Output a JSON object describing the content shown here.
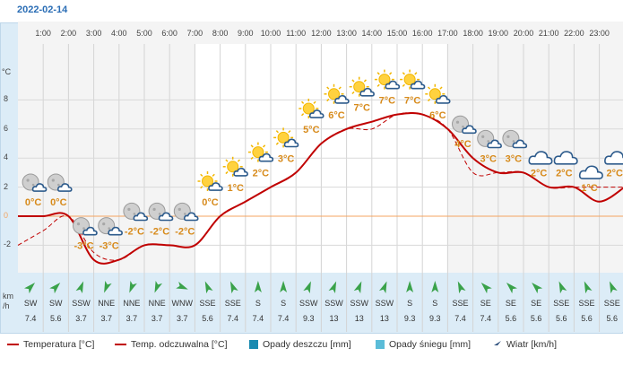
{
  "date": "2022-02-14",
  "units": {
    "temp": "°C",
    "wind_line1": "km",
    "wind_line2": "/h"
  },
  "colors": {
    "temperature": "#c00000",
    "rain": "#1a8ab0",
    "snow": "#5bbcd8",
    "zero_line": "#f4a460",
    "text_temp": "#d78a1a"
  },
  "y_ticks": [
    "8",
    "6",
    "4",
    "2",
    "0",
    "-2"
  ],
  "hours": [
    "1:00",
    "2:00",
    "3:00",
    "4:00",
    "5:00",
    "6:00",
    "7:00",
    "8:00",
    "9:00",
    "10:00",
    "11:00",
    "12:00",
    "13:00",
    "14:00",
    "15:00",
    "16:00",
    "17:00",
    "18:00",
    "19:00",
    "20:00",
    "21:00",
    "22:00",
    "23:00"
  ],
  "chart_data": {
    "type": "line",
    "title": "",
    "ylabel": "°C",
    "ylim": [
      -4,
      10
    ],
    "x": [
      "0:00",
      "1:00",
      "2:00",
      "3:00",
      "4:00",
      "5:00",
      "6:00",
      "7:00",
      "8:00",
      "9:00",
      "10:00",
      "11:00",
      "12:00",
      "13:00",
      "14:00",
      "15:00",
      "16:00",
      "17:00",
      "18:00",
      "19:00",
      "20:00",
      "21:00",
      "22:00",
      "23:00",
      "24:00"
    ],
    "series": [
      {
        "name": "Temperatura [°C]",
        "values": [
          0,
          0,
          0,
          -3,
          -3,
          -2,
          -2,
          -2,
          0,
          1,
          2,
          3,
          5,
          6,
          6.5,
          7,
          7,
          6,
          4,
          3,
          3,
          2,
          2,
          1,
          2
        ]
      },
      {
        "name": "Temp. odczuwalna [°C]",
        "values": [
          -2,
          -1,
          0,
          -2.5,
          -3,
          -2,
          -2,
          -2,
          0,
          1,
          2,
          3,
          5,
          6,
          6,
          7,
          7,
          6,
          3,
          3,
          3,
          2,
          2,
          2,
          2
        ]
      }
    ],
    "point_labels": [
      "0°C",
      "0°C",
      "-3°C",
      "-3°C",
      "-2°C",
      "-2°C",
      "-2°C",
      "0°C",
      "1°C",
      "2°C",
      "3°C",
      "5°C",
      "6°C",
      "7°C",
      "7°C",
      "7°C",
      "6°C",
      "4°C",
      "3°C",
      "3°C",
      "2°C",
      "2°C",
      "1°C",
      "2°C"
    ],
    "icons": [
      "moon-cloud-icon",
      "moon-cloud-icon",
      "moon-cloud-icon",
      "moon-cloud-icon",
      "moon-cloud-icon",
      "moon-cloud-icon",
      "moon-cloud-icon",
      "sun-cloud-icon",
      "sun-cloud-icon",
      "sun-cloud-icon",
      "sun-cloud-icon",
      "sun-cloud-icon",
      "sun-cloud-icon",
      "sun-cloud-icon",
      "sun-cloud-icon",
      "sun-cloud-icon",
      "sun-cloud-icon",
      "moon-cloud-icon",
      "moon-cloud-icon",
      "moon-cloud-icon",
      "cloud-icon",
      "cloud-icon",
      "cloud-icon",
      "cloud-icon"
    ]
  },
  "wind": {
    "directions": [
      "SW",
      "SW",
      "SSW",
      "NNE",
      "NNE",
      "NNE",
      "WNW",
      "SSE",
      "SSE",
      "S",
      "S",
      "SSW",
      "SSW",
      "SSW",
      "SSW",
      "S",
      "S",
      "SSE",
      "SE",
      "SE",
      "SE",
      "SSE",
      "SSE",
      "SSE"
    ],
    "speeds": [
      "7.4",
      "5.6",
      "3.7",
      "3.7",
      "3.7",
      "3.7",
      "3.7",
      "5.6",
      "7.4",
      "7.4",
      "7.4",
      "9.3",
      "13",
      "13",
      "13",
      "9.3",
      "9.3",
      "7.4",
      "7.4",
      "5.6",
      "5.6",
      "5.6",
      "5.6",
      "5.6"
    ]
  },
  "legend": {
    "temp": "Temperatura [°C]",
    "feels": "Temp. odczuwalna [°C]",
    "rain": "Opady deszczu [mm]",
    "snow": "Opady śniegu [mm]",
    "wind": "Wiatr [km/h]"
  }
}
